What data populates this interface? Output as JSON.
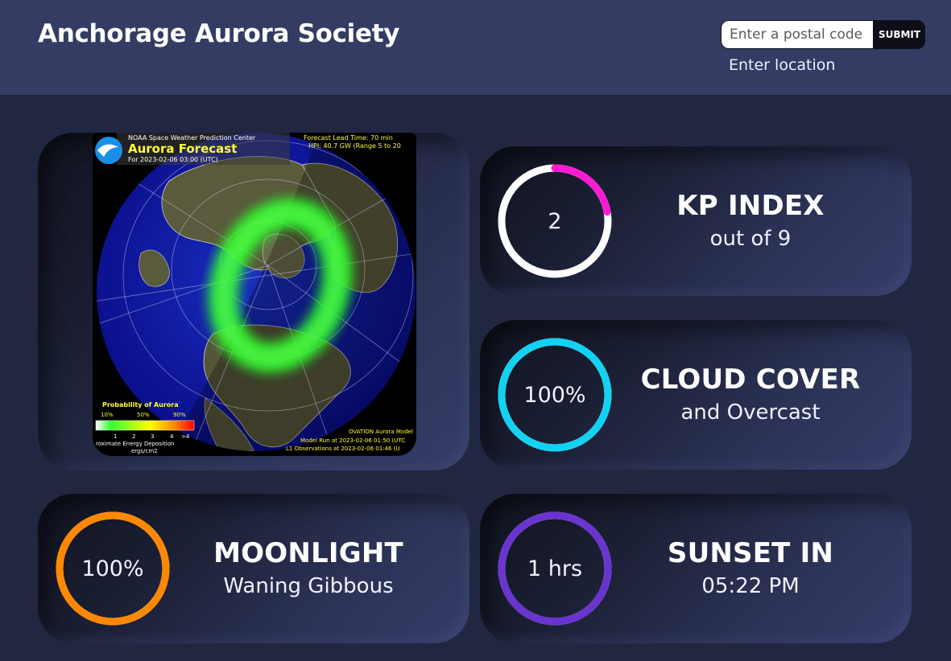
{
  "header": {
    "title": "Anchorage Aurora Society",
    "search": {
      "placeholder": "Enter a postal code",
      "value": "",
      "submit_label": "SUBMIT"
    },
    "location_label": "Enter location"
  },
  "aurora_map": {
    "agency": "NOAA Space Weather Prediction Center",
    "title": "Aurora Forecast",
    "forecast_for": "For 2023-02-06 03:00 (UTC)",
    "lead_time": "Forecast Lead Time: 70 min",
    "hpi": "HPI: 40.7 GW (Range 5 to 20",
    "legend_title": "Probability of Aurora",
    "legend_percent_labels": [
      "10%",
      "50%",
      "90%"
    ],
    "legend_scale_labels": [
      "1",
      "2",
      "3",
      "4",
      ">4"
    ],
    "energy_label": "roximate Energy Deposition",
    "energy_unit": "ergs/cm2",
    "model_name": "OVATION Aurora Model",
    "model_run": "Model Run at 2023-02-06 01:50 (UTC",
    "observations": "L1 Observations at 2023-02-06 01:46 (U",
    "colors": {
      "aurora": "#2bff2b",
      "ocean": "#0b0f9a",
      "land": "#58573a",
      "title_yellow": "#ffff33"
    }
  },
  "metrics": {
    "kp": {
      "value": "2",
      "title": "KP INDEX",
      "subtitle": "out of 9",
      "fraction": 0.2222,
      "color": "#ff1ad4"
    },
    "cloud": {
      "value": "100%",
      "title": "CLOUD COVER",
      "subtitle": "and Overcast",
      "fraction": 1.0,
      "color": "#12d2f2"
    },
    "moon": {
      "value": "100%",
      "title": "MOONLIGHT",
      "subtitle": "Waning Gibbous",
      "fraction": 1.0,
      "color": "#ff8800"
    },
    "sunset": {
      "value": "1 hrs",
      "title": "SUNSET IN",
      "subtitle": "05:22 PM",
      "fraction": 1.0,
      "color": "#6a34d0"
    }
  }
}
